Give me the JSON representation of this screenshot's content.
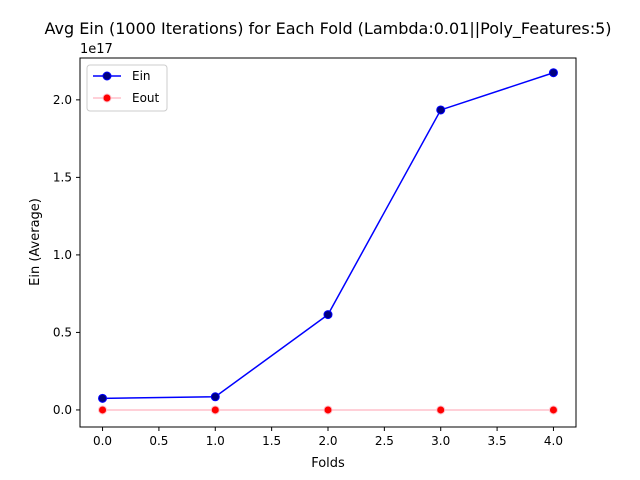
{
  "chart_data": {
    "type": "line",
    "title": "Avg Ein (1000 Iterations) for Each Fold (Lambda:0.01||Poly_Features:5)",
    "xlabel": "Folds",
    "ylabel": "Ein (Average)",
    "y_offset_label": "1e17",
    "xlim": [
      -0.2,
      4.2
    ],
    "ylim": [
      -0.11,
      2.27
    ],
    "xticks": [
      0.0,
      0.5,
      1.0,
      1.5,
      2.0,
      2.5,
      3.0,
      3.5,
      4.0
    ],
    "xtick_labels": [
      "0.0",
      "0.5",
      "1.0",
      "1.5",
      "2.0",
      "2.5",
      "3.0",
      "3.5",
      "4.0"
    ],
    "yticks": [
      0.0,
      0.5,
      1.0,
      1.5,
      2.0
    ],
    "ytick_labels": [
      "0.0",
      "0.5",
      "1.0",
      "1.5",
      "2.0"
    ],
    "grid": false,
    "legend_position": "top-left",
    "x": [
      0,
      1,
      2,
      3,
      4
    ],
    "series": [
      {
        "name": "Ein",
        "values": [
          0.075,
          0.085,
          0.615,
          1.935,
          2.175
        ],
        "color": "#0000ff",
        "marker_color": "#000080"
      },
      {
        "name": "Eout",
        "values": [
          0.0,
          0.0,
          0.0,
          0.0,
          0.0
        ],
        "color": "#ffc0cb",
        "marker_color": "#ff0000"
      }
    ]
  }
}
